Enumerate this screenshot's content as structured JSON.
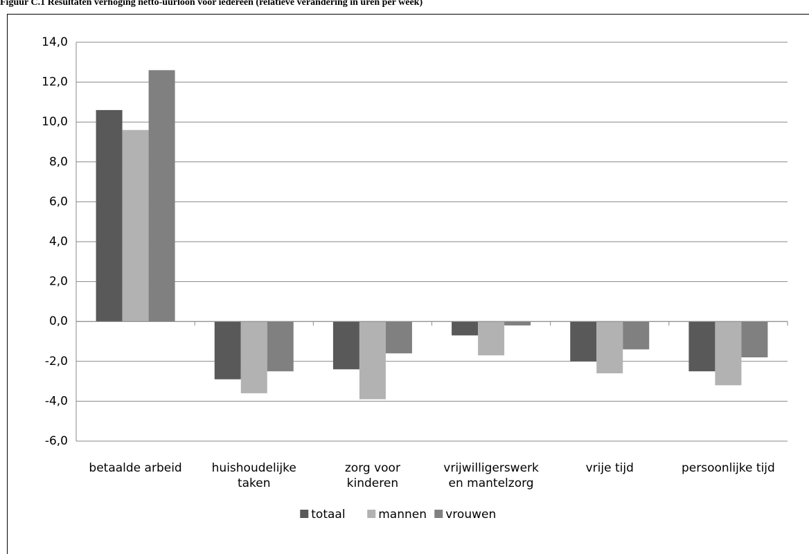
{
  "chart_data": {
    "type": "bar",
    "title": "Figuur C.1 Resultaten verhoging netto-uurloon voor iedereen (relatieve verandering in uren per week)",
    "categories": [
      "betaalde arbeid",
      "huishoudelijke taken",
      "zorg voor kinderen",
      "vrijwilligerswerk en mantelzorg",
      "vrije tijd",
      "persoonlijke tijd"
    ],
    "series": [
      {
        "name": "totaal",
        "color": "#595959",
        "values": [
          10.6,
          -2.9,
          -2.4,
          -0.7,
          -2.0,
          -2.5
        ]
      },
      {
        "name": "mannen",
        "color": "#b2b2b2",
        "values": [
          9.6,
          -3.6,
          -3.9,
          -1.7,
          -2.6,
          -3.2
        ]
      },
      {
        "name": "vrouwen",
        "color": "#808080",
        "values": [
          12.6,
          -2.5,
          -1.6,
          -0.2,
          -1.4,
          -1.8
        ]
      }
    ],
    "ylim": [
      -6,
      14
    ],
    "yticks": [
      {
        "value": -6,
        "label": "-6,0"
      },
      {
        "value": -4,
        "label": "-4,0"
      },
      {
        "value": -2,
        "label": "-2,0"
      },
      {
        "value": 0,
        "label": "0,0"
      },
      {
        "value": 2,
        "label": "2,0"
      },
      {
        "value": 4,
        "label": "4,0"
      },
      {
        "value": 6,
        "label": "6,0"
      },
      {
        "value": 8,
        "label": "8,0"
      },
      {
        "value": 10,
        "label": "10,0"
      },
      {
        "value": 12,
        "label": "12,0"
      },
      {
        "value": 14,
        "label": "14,0"
      }
    ],
    "grid": true,
    "legend": "bottom"
  }
}
